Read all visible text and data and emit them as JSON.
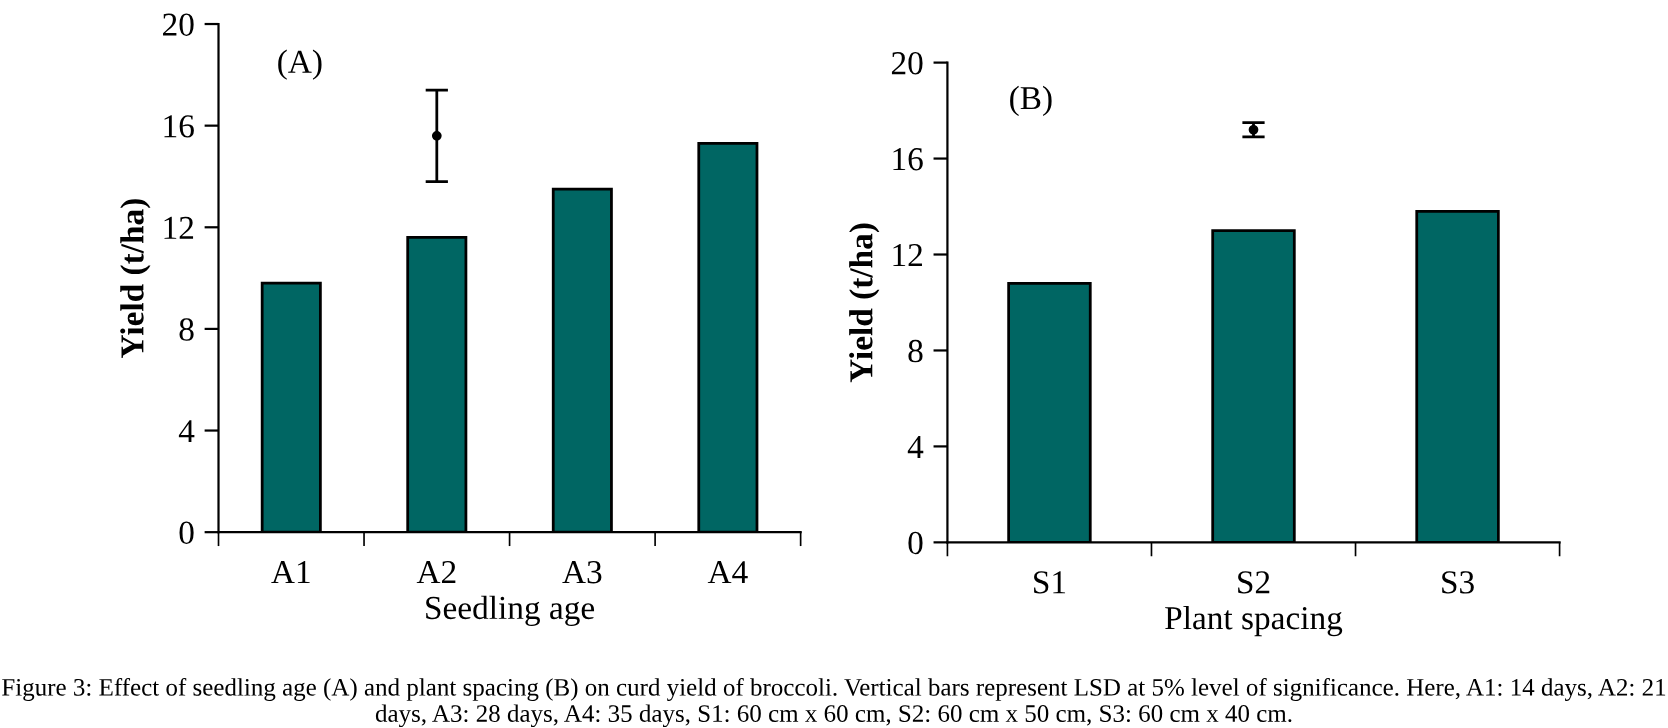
{
  "chart_data": [
    {
      "type": "bar",
      "categories": [
        "A1",
        "A2",
        "A3",
        "A4"
      ],
      "xlabel": "Seedling age",
      "ylabel": "Yield (t/ha)",
      "ylim": [
        0,
        20
      ],
      "yticks": [
        0,
        4,
        8,
        12,
        16,
        20
      ],
      "grid": false,
      "legend": false,
      "series": [
        {
          "color": "#006663",
          "values": [
            9.8,
            11.6,
            13.5,
            15.3
          ]
        },
        {
          "type": "scatter",
          "marker": "circle",
          "x": [
            "A2"
          ],
          "values": [
            15.6
          ],
          "errors": [
            1.8
          ],
          "color": "#000000"
        }
      ],
      "annotations": [
        "(A)",
        "Figure 3: Effect of seedling age (A) and plant spacing (B) on curd yield of broccoli. Vertical bars represent LSD at 5% level of significance. Here, A1: 14 days, A2: 21 days, A3: 28 days, A4: 35 days, S1: 60 cm x 60 cm, S2: 60 cm x 50 cm, S3: 60 cm x 40 cm."
      ]
    },
    {
      "type": "bar",
      "categories": [
        "S1",
        "S2",
        "S3"
      ],
      "xlabel": "Plant spacing",
      "ylabel": "Yield (t/ha)",
      "ylim": [
        0,
        20
      ],
      "yticks": [
        0,
        4,
        8,
        12,
        16,
        20
      ],
      "grid": false,
      "legend": false,
      "series": [
        {
          "color": "#006663",
          "values": [
            10.8,
            13.0,
            13.8
          ]
        },
        {
          "type": "scatter",
          "marker": "circle",
          "x": [
            "S2"
          ],
          "values": [
            17.2
          ],
          "errors": [
            0.3
          ],
          "color": "#000000"
        }
      ],
      "annotations": [
        "(B)"
      ]
    }
  ]
}
